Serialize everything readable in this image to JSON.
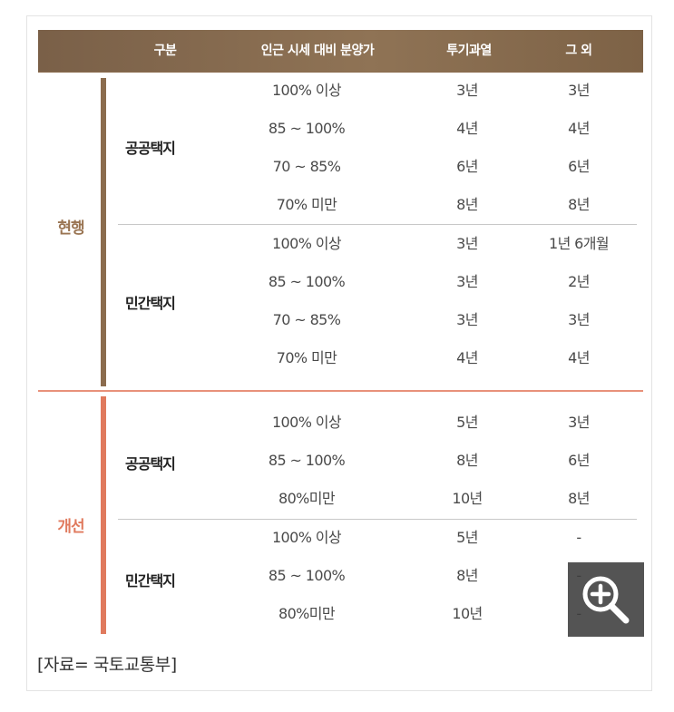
{
  "header": {
    "col_category": "구분",
    "col_range": "인근 시세 대비 분양가",
    "col_speculative": "투기과열",
    "col_other": "그 외"
  },
  "groups": [
    {
      "label": "현행",
      "color": "#8b6c4e",
      "sections": [
        {
          "category": "공공택지",
          "rows": [
            {
              "range": "100% 이상",
              "speculative": "3년",
              "other": "3년"
            },
            {
              "range": "85 ~ 100%",
              "speculative": "4년",
              "other": "4년"
            },
            {
              "range": "70 ~ 85%",
              "speculative": "6년",
              "other": "6년"
            },
            {
              "range": "70% 미만",
              "speculative": "8년",
              "other": "8년"
            }
          ]
        },
        {
          "category": "민간택지",
          "rows": [
            {
              "range": "100% 이상",
              "speculative": "3년",
              "other": "1년 6개월"
            },
            {
              "range": "85 ~ 100%",
              "speculative": "3년",
              "other": "2년"
            },
            {
              "range": "70 ~ 85%",
              "speculative": "3년",
              "other": "3년"
            },
            {
              "range": "70% 미만",
              "speculative": "4년",
              "other": "4년"
            }
          ]
        }
      ]
    },
    {
      "label": "개선",
      "color": "#e07a5e",
      "sections": [
        {
          "category": "공공택지",
          "rows": [
            {
              "range": "100% 이상",
              "speculative": "5년",
              "other": "3년"
            },
            {
              "range": "85 ~ 100%",
              "speculative": "8년",
              "other": "6년"
            },
            {
              "range": "80%미만",
              "speculative": "10년",
              "other": "8년"
            }
          ]
        },
        {
          "category": "민간택지",
          "rows": [
            {
              "range": "100% 이상",
              "speculative": "5년",
              "other": "-"
            },
            {
              "range": "85 ~ 100%",
              "speculative": "8년",
              "other": "-"
            },
            {
              "range": "80%미만",
              "speculative": "10년",
              "other": "-"
            }
          ]
        }
      ]
    }
  ],
  "source": "[자료= 국토교통부]",
  "zoom_button": {
    "icon": "zoom-in-icon"
  }
}
